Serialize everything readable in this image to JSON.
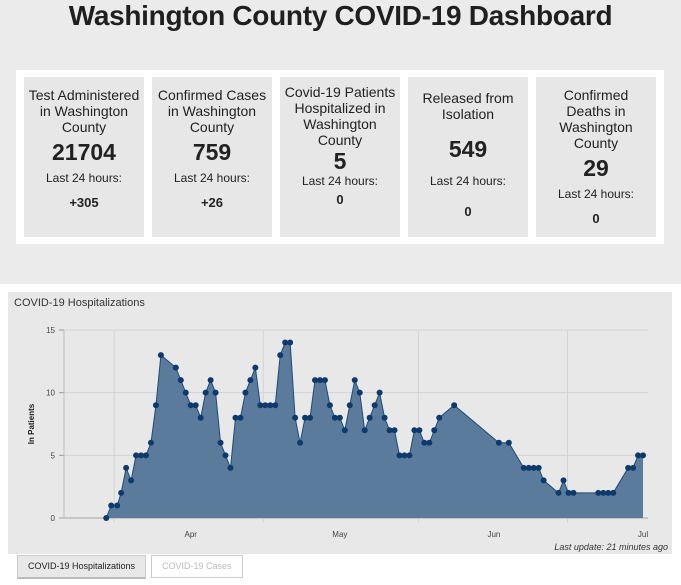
{
  "header": {
    "title": "Washington County COVID-19 Dashboard"
  },
  "cards": [
    {
      "label": "Test Administered in Washington County",
      "value": "21704",
      "sub": "Last 24 hours:",
      "delta": "+305"
    },
    {
      "label": "Confirmed Cases in Washington County",
      "value": "759",
      "sub": "Last 24 hours:",
      "delta": "+26"
    },
    {
      "label": "Covid-19 Patients Hospitalized in Washington County",
      "value": "5",
      "sub": "Last 24 hours:",
      "delta": "0"
    },
    {
      "label": "Released from Isolation",
      "value": "549",
      "sub": "Last 24 hours:",
      "delta": "0"
    },
    {
      "label": "Confirmed Deaths in Washington County",
      "value": "29",
      "sub": "Last 24 hours:",
      "delta": "0"
    }
  ],
  "chart_panel": {
    "title": "COVID-19 Hospitalizations",
    "last_update": "Last update: 21 minutes ago",
    "tabs": [
      {
        "label": "COVID-19 Hospitalizations",
        "active": true
      },
      {
        "label": "COVID-19 Cases",
        "active": false
      }
    ]
  },
  "colors": {
    "fill": "#5b7b9c",
    "line": "#1f4a78",
    "point": "#0d3a6b"
  },
  "chart_data": {
    "type": "area",
    "title": "COVID-19 Hospitalizations",
    "xlabel": "",
    "ylabel": "In Patients",
    "ylim": [
      0,
      15
    ],
    "yticks": [
      0,
      5,
      10,
      15
    ],
    "x_unit": "days since Mar 30",
    "xticks": [
      {
        "label": "Apr",
        "day": 17
      },
      {
        "label": "May",
        "day": 47
      },
      {
        "label": "Jun",
        "day": 78
      },
      {
        "label": "Jul",
        "day": 108
      }
    ],
    "month_boundaries": [
      1.6,
      31.6,
      62.8,
      92.8
    ],
    "xlim": [
      -8.5,
      109
    ],
    "grid": true,
    "legend": "none",
    "points": [
      [
        0,
        0
      ],
      [
        1,
        1
      ],
      [
        2.2,
        1
      ],
      [
        3,
        2
      ],
      [
        4,
        4
      ],
      [
        5,
        3
      ],
      [
        6,
        5
      ],
      [
        7,
        5
      ],
      [
        8,
        5
      ],
      [
        9,
        6
      ],
      [
        10,
        9
      ],
      [
        11,
        13
      ],
      [
        14,
        12
      ],
      [
        15,
        11
      ],
      [
        16,
        10
      ],
      [
        17,
        9
      ],
      [
        18,
        9
      ],
      [
        19,
        8
      ],
      [
        20,
        10
      ],
      [
        21,
        11
      ],
      [
        22,
        10
      ],
      [
        23,
        6
      ],
      [
        24,
        5
      ],
      [
        25,
        4
      ],
      [
        26,
        8
      ],
      [
        27,
        8
      ],
      [
        28,
        10
      ],
      [
        29,
        11
      ],
      [
        30,
        12
      ],
      [
        31,
        9
      ],
      [
        32,
        9
      ],
      [
        33,
        9
      ],
      [
        34,
        9
      ],
      [
        35,
        13
      ],
      [
        36,
        14
      ],
      [
        37,
        14
      ],
      [
        38,
        8
      ],
      [
        39,
        6
      ],
      [
        40,
        8
      ],
      [
        41,
        8
      ],
      [
        42,
        11
      ],
      [
        43,
        11
      ],
      [
        44,
        11
      ],
      [
        45,
        9
      ],
      [
        46,
        8
      ],
      [
        47,
        8
      ],
      [
        48,
        7
      ],
      [
        49,
        9
      ],
      [
        50,
        11
      ],
      [
        51,
        10
      ],
      [
        52,
        7
      ],
      [
        53,
        8
      ],
      [
        54,
        9
      ],
      [
        55,
        10
      ],
      [
        56,
        8
      ],
      [
        57,
        7
      ],
      [
        58,
        7
      ],
      [
        59,
        5
      ],
      [
        60,
        5
      ],
      [
        61,
        5
      ],
      [
        62,
        7
      ],
      [
        63,
        7
      ],
      [
        64,
        6
      ],
      [
        65,
        6
      ],
      [
        66,
        7
      ],
      [
        67,
        8
      ],
      [
        70,
        9
      ],
      [
        79,
        6
      ],
      [
        81,
        6
      ],
      [
        84,
        4
      ],
      [
        85,
        4
      ],
      [
        86,
        4
      ],
      [
        87,
        4
      ],
      [
        88,
        3
      ],
      [
        91,
        2
      ],
      [
        92,
        3
      ],
      [
        93,
        2
      ],
      [
        94,
        2
      ],
      [
        99,
        2
      ],
      [
        100,
        2
      ],
      [
        101,
        2
      ],
      [
        102,
        2
      ],
      [
        105,
        4
      ],
      [
        106,
        4
      ],
      [
        107,
        5
      ],
      [
        108,
        5
      ]
    ]
  }
}
